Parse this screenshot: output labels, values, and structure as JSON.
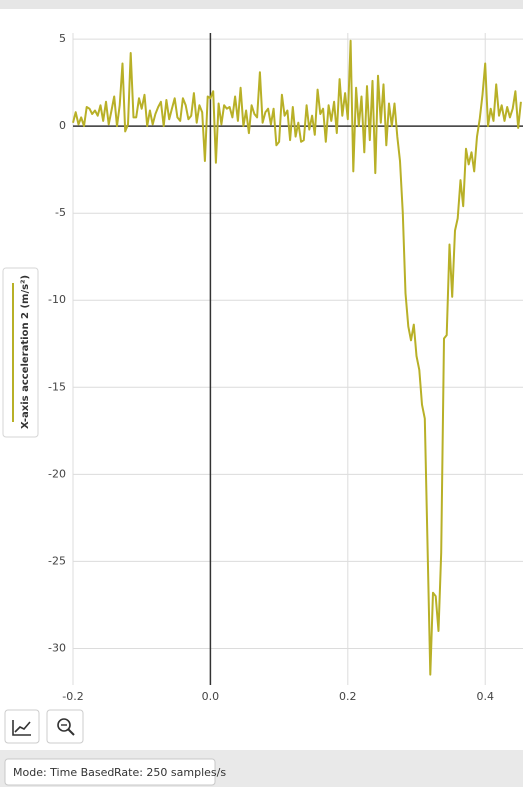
{
  "chart_data": {
    "type": "line",
    "series": [
      {
        "name": "X-axis acceleration 2 (m/s²)",
        "color": "#b8b027",
        "x": [
          -0.2,
          -0.196,
          -0.192,
          -0.188,
          -0.184,
          -0.18,
          -0.176,
          -0.172,
          -0.168,
          -0.164,
          -0.16,
          -0.156,
          -0.152,
          -0.148,
          -0.144,
          -0.14,
          -0.136,
          -0.132,
          -0.128,
          -0.124,
          -0.12,
          -0.116,
          -0.112,
          -0.108,
          -0.104,
          -0.1,
          -0.096,
          -0.092,
          -0.088,
          -0.084,
          -0.08,
          -0.076,
          -0.072,
          -0.068,
          -0.064,
          -0.06,
          -0.056,
          -0.052,
          -0.048,
          -0.044,
          -0.04,
          -0.036,
          -0.032,
          -0.028,
          -0.024,
          -0.02,
          -0.016,
          -0.012,
          -0.008,
          -0.004,
          0,
          0.004,
          0.008,
          0.012,
          0.016,
          0.02,
          0.024,
          0.028,
          0.032,
          0.036,
          0.04,
          0.044,
          0.048,
          0.052,
          0.056,
          0.06,
          0.064,
          0.068,
          0.072,
          0.076,
          0.08,
          0.084,
          0.088,
          0.092,
          0.096,
          0.1,
          0.104,
          0.108,
          0.112,
          0.116,
          0.12,
          0.124,
          0.128,
          0.132,
          0.136,
          0.14,
          0.144,
          0.148,
          0.152,
          0.156,
          0.16,
          0.164,
          0.168,
          0.172,
          0.176,
          0.18,
          0.184,
          0.188,
          0.192,
          0.196,
          0.2,
          0.204,
          0.208,
          0.212,
          0.216,
          0.22,
          0.224,
          0.228,
          0.232,
          0.236,
          0.24,
          0.244,
          0.248,
          0.252,
          0.256,
          0.26,
          0.264,
          0.268,
          0.272,
          0.276,
          0.28,
          0.284,
          0.288,
          0.292,
          0.296,
          0.3,
          0.304,
          0.308,
          0.312,
          0.316,
          0.32,
          0.324,
          0.328,
          0.332,
          0.336,
          0.34,
          0.344,
          0.348,
          0.352,
          0.356,
          0.36,
          0.364,
          0.368,
          0.372,
          0.376,
          0.38,
          0.384,
          0.388,
          0.392,
          0.396,
          0.4,
          0.404,
          0.408,
          0.412,
          0.416,
          0.42,
          0.424,
          0.428,
          0.432,
          0.436,
          0.44,
          0.444,
          0.448,
          0.452
        ],
        "values": [
          0.2,
          0.8,
          0.1,
          0.5,
          0.0,
          1.1,
          1.0,
          0.7,
          0.9,
          0.6,
          1.2,
          0.3,
          1.4,
          0.1,
          0.9,
          1.7,
          0.0,
          1.2,
          3.6,
          -0.3,
          0.1,
          4.2,
          0.5,
          0.5,
          1.6,
          1.0,
          1.8,
          0.0,
          0.9,
          0.1,
          0.7,
          1.1,
          1.4,
          0.0,
          1.5,
          0.4,
          1.0,
          1.6,
          0.5,
          0.3,
          1.6,
          1.2,
          0.4,
          0.6,
          1.9,
          0.2,
          1.2,
          0.8,
          -2.0,
          1.7,
          1.6,
          2.0,
          -2.1,
          1.3,
          0.1,
          1.2,
          1.0,
          1.1,
          0.5,
          1.7,
          0.3,
          2.2,
          0.0,
          0.9,
          -0.4,
          1.2,
          0.7,
          0.5,
          3.1,
          0.2,
          0.8,
          1.0,
          0.1,
          1.0,
          -1.1,
          -0.9,
          1.8,
          0.6,
          0.9,
          -0.8,
          1.1,
          -0.6,
          0.2,
          -0.9,
          -0.8,
          1.2,
          -0.2,
          0.6,
          -0.5,
          2.1,
          0.7,
          1.0,
          -0.9,
          1.2,
          0.3,
          1.4,
          -0.4,
          2.7,
          0.6,
          1.9,
          0.4,
          4.9,
          -2.6,
          2.2,
          0.0,
          1.7,
          -1.5,
          2.3,
          -0.8,
          2.6,
          -2.7,
          2.9,
          0.2,
          2.4,
          -1.1,
          1.3,
          0.0,
          1.3,
          -0.6,
          -2.0,
          -5.0,
          -9.6,
          -11.5,
          -12.3,
          -11.4,
          -13.2,
          -14.0,
          -16.0,
          -16.8,
          -24.0,
          -31.5,
          -26.8,
          -27.0,
          -29.0,
          -24.5,
          -12.2,
          -12.0,
          -6.8,
          -9.8,
          -6.0,
          -5.3,
          -3.1,
          -4.6,
          -1.3,
          -2.2,
          -1.5,
          -2.6,
          -0.6,
          0.4,
          1.8,
          3.6,
          0.0,
          1.0,
          0.3,
          2.4,
          0.6,
          1.2,
          0.3,
          1.1,
          0.5,
          1.0,
          2.0,
          -0.1,
          1.4
        ]
      }
    ],
    "xlim": [
      -0.2,
      0.455
    ],
    "xticks": [
      -0.2,
      {
        "value": 0,
        "label": "0.0"
      },
      0.2,
      0.4
    ],
    "ylim": [
      -32.1,
      5.35
    ],
    "yticks": [
      5,
      0,
      -5,
      -10,
      -15,
      -20,
      -25,
      -30
    ],
    "grid": true
  },
  "status": {
    "mode": "Mode: Time Based",
    "rate": "Rate: 250 samples/s"
  }
}
